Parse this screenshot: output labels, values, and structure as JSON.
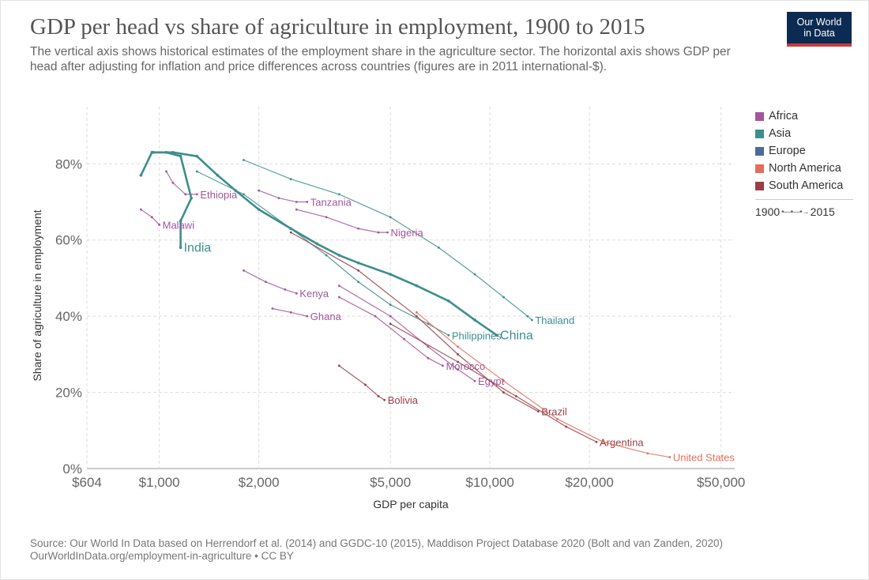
{
  "header": {
    "title": "GDP per head vs share of agriculture in employment, 1900 to 2015",
    "subtitle": "The vertical axis shows historical estimates of the employment share in the agriculture sector. The horizontal axis shows GDP per head after adjusting for inflation and price differences across countries (figures are in 2011 international-$).",
    "logo_line1": "Our World",
    "logo_line2": "in Data",
    "logo_bg": "#0b2b53",
    "logo_accent": "#c43d3d"
  },
  "legend": {
    "items": [
      {
        "label": "Africa",
        "color": "#a2559c"
      },
      {
        "label": "Asia",
        "color": "#3c8e8c"
      },
      {
        "label": "Europe",
        "color": "#4c6a9c"
      },
      {
        "label": "North America",
        "color": "#e56e5a"
      },
      {
        "label": "South America",
        "color": "#9a3e48"
      }
    ],
    "time_start": "1900",
    "time_end": "2015"
  },
  "footer": {
    "source": "Source: Our World In Data based on Herrendorf et al. (2014) and GGDC-10 (2015), Maddison Project Database 2020 (Bolt and van Zanden, 2020)",
    "url": "OurWorldInData.org/employment-in-agriculture • CC BY"
  },
  "chart_data": {
    "type": "scatter",
    "xlabel": "GDP per capita",
    "ylabel": "Share of agriculture in employment",
    "x_scale": "log",
    "xlim": [
      604,
      55000
    ],
    "ylim": [
      0,
      95
    ],
    "x_ticks": [
      {
        "value": 604,
        "label": "$604"
      },
      {
        "value": 1000,
        "label": "$1,000"
      },
      {
        "value": 2000,
        "label": "$2,000"
      },
      {
        "value": 5000,
        "label": "$5,000"
      },
      {
        "value": 10000,
        "label": "$10,000"
      },
      {
        "value": 20000,
        "label": "$20,000"
      },
      {
        "value": 50000,
        "label": "$50,000"
      }
    ],
    "y_ticks": [
      {
        "value": 0,
        "label": "0%"
      },
      {
        "value": 20,
        "label": "20%"
      },
      {
        "value": 40,
        "label": "40%"
      },
      {
        "value": 60,
        "label": "60%"
      },
      {
        "value": 80,
        "label": "80%"
      }
    ],
    "grid": true,
    "legend_position": "right",
    "series": [
      {
        "name": "China",
        "region": "Asia",
        "label_size": "large",
        "points": [
          [
            880,
            77
          ],
          [
            950,
            83
          ],
          [
            1100,
            83
          ],
          [
            1300,
            82
          ],
          [
            1500,
            77
          ],
          [
            1700,
            73
          ],
          [
            2000,
            68
          ],
          [
            2500,
            63
          ],
          [
            3000,
            59
          ],
          [
            3500,
            56
          ],
          [
            4000,
            54
          ],
          [
            5000,
            51
          ],
          [
            6000,
            48
          ],
          [
            7500,
            44
          ],
          [
            9000,
            39
          ],
          [
            10500,
            35
          ]
        ]
      },
      {
        "name": "India",
        "region": "Asia",
        "label_size": "large",
        "points": [
          [
            960,
            83
          ],
          [
            1050,
            83
          ],
          [
            1160,
            82
          ],
          [
            1250,
            71
          ],
          [
            1160,
            65
          ],
          [
            1160,
            58
          ]
        ]
      },
      {
        "name": "Thailand",
        "region": "Asia",
        "points": [
          [
            1800,
            81
          ],
          [
            2500,
            76
          ],
          [
            3500,
            72
          ],
          [
            5000,
            66
          ],
          [
            7000,
            58
          ],
          [
            9000,
            51
          ],
          [
            11000,
            45
          ],
          [
            13000,
            40
          ],
          [
            13400,
            39
          ]
        ]
      },
      {
        "name": "Philippines",
        "region": "Asia",
        "points": [
          [
            1300,
            78
          ],
          [
            1800,
            72
          ],
          [
            2500,
            63
          ],
          [
            3200,
            56
          ],
          [
            4000,
            49
          ],
          [
            5000,
            43
          ],
          [
            6500,
            38
          ],
          [
            7500,
            35
          ]
        ]
      },
      {
        "name": "Ethiopia",
        "region": "Africa",
        "points": [
          [
            1050,
            78
          ],
          [
            1100,
            75
          ],
          [
            1200,
            72
          ],
          [
            1300,
            72
          ]
        ]
      },
      {
        "name": "Malawi",
        "region": "Africa",
        "points": [
          [
            880,
            68
          ],
          [
            950,
            66
          ],
          [
            1000,
            64
          ]
        ]
      },
      {
        "name": "Tanzania",
        "region": "Africa",
        "points": [
          [
            2000,
            73
          ],
          [
            2300,
            71
          ],
          [
            2600,
            70
          ],
          [
            2800,
            70
          ]
        ]
      },
      {
        "name": "Nigeria",
        "region": "Africa",
        "points": [
          [
            2600,
            68
          ],
          [
            3200,
            66
          ],
          [
            4000,
            63
          ],
          [
            4600,
            62
          ],
          [
            4900,
            62
          ]
        ]
      },
      {
        "name": "Kenya",
        "region": "Africa",
        "points": [
          [
            1800,
            52
          ],
          [
            2100,
            49
          ],
          [
            2400,
            47
          ],
          [
            2600,
            46
          ]
        ]
      },
      {
        "name": "Ghana",
        "region": "Africa",
        "points": [
          [
            2200,
            42
          ],
          [
            2500,
            41
          ],
          [
            2800,
            40
          ]
        ]
      },
      {
        "name": "Morocco",
        "region": "Africa",
        "points": [
          [
            3500,
            45
          ],
          [
            4500,
            40
          ],
          [
            5500,
            34
          ],
          [
            6500,
            29
          ],
          [
            7200,
            27
          ]
        ]
      },
      {
        "name": "Egypt",
        "region": "Africa",
        "points": [
          [
            3500,
            48
          ],
          [
            5000,
            40
          ],
          [
            6500,
            32
          ],
          [
            8000,
            26
          ],
          [
            9000,
            23
          ]
        ]
      },
      {
        "name": "Brazil",
        "region": "South America",
        "points": [
          [
            2500,
            62
          ],
          [
            4000,
            52
          ],
          [
            6000,
            40
          ],
          [
            8000,
            30
          ],
          [
            11000,
            20
          ],
          [
            14000,
            15
          ]
        ]
      },
      {
        "name": "Argentina",
        "region": "South America",
        "points": [
          [
            5000,
            38
          ],
          [
            8000,
            28
          ],
          [
            12000,
            19
          ],
          [
            17000,
            11
          ],
          [
            21000,
            7
          ]
        ]
      },
      {
        "name": "United States",
        "region": "North America",
        "points": [
          [
            6000,
            41
          ],
          [
            8000,
            32
          ],
          [
            11000,
            23
          ],
          [
            16000,
            13
          ],
          [
            22000,
            7
          ],
          [
            30000,
            4
          ],
          [
            35000,
            3
          ]
        ]
      },
      {
        "name": "Bolivia",
        "region": "South America",
        "points": [
          [
            3500,
            27
          ],
          [
            4200,
            22
          ],
          [
            4600,
            19
          ],
          [
            4800,
            18
          ]
        ]
      }
    ]
  }
}
